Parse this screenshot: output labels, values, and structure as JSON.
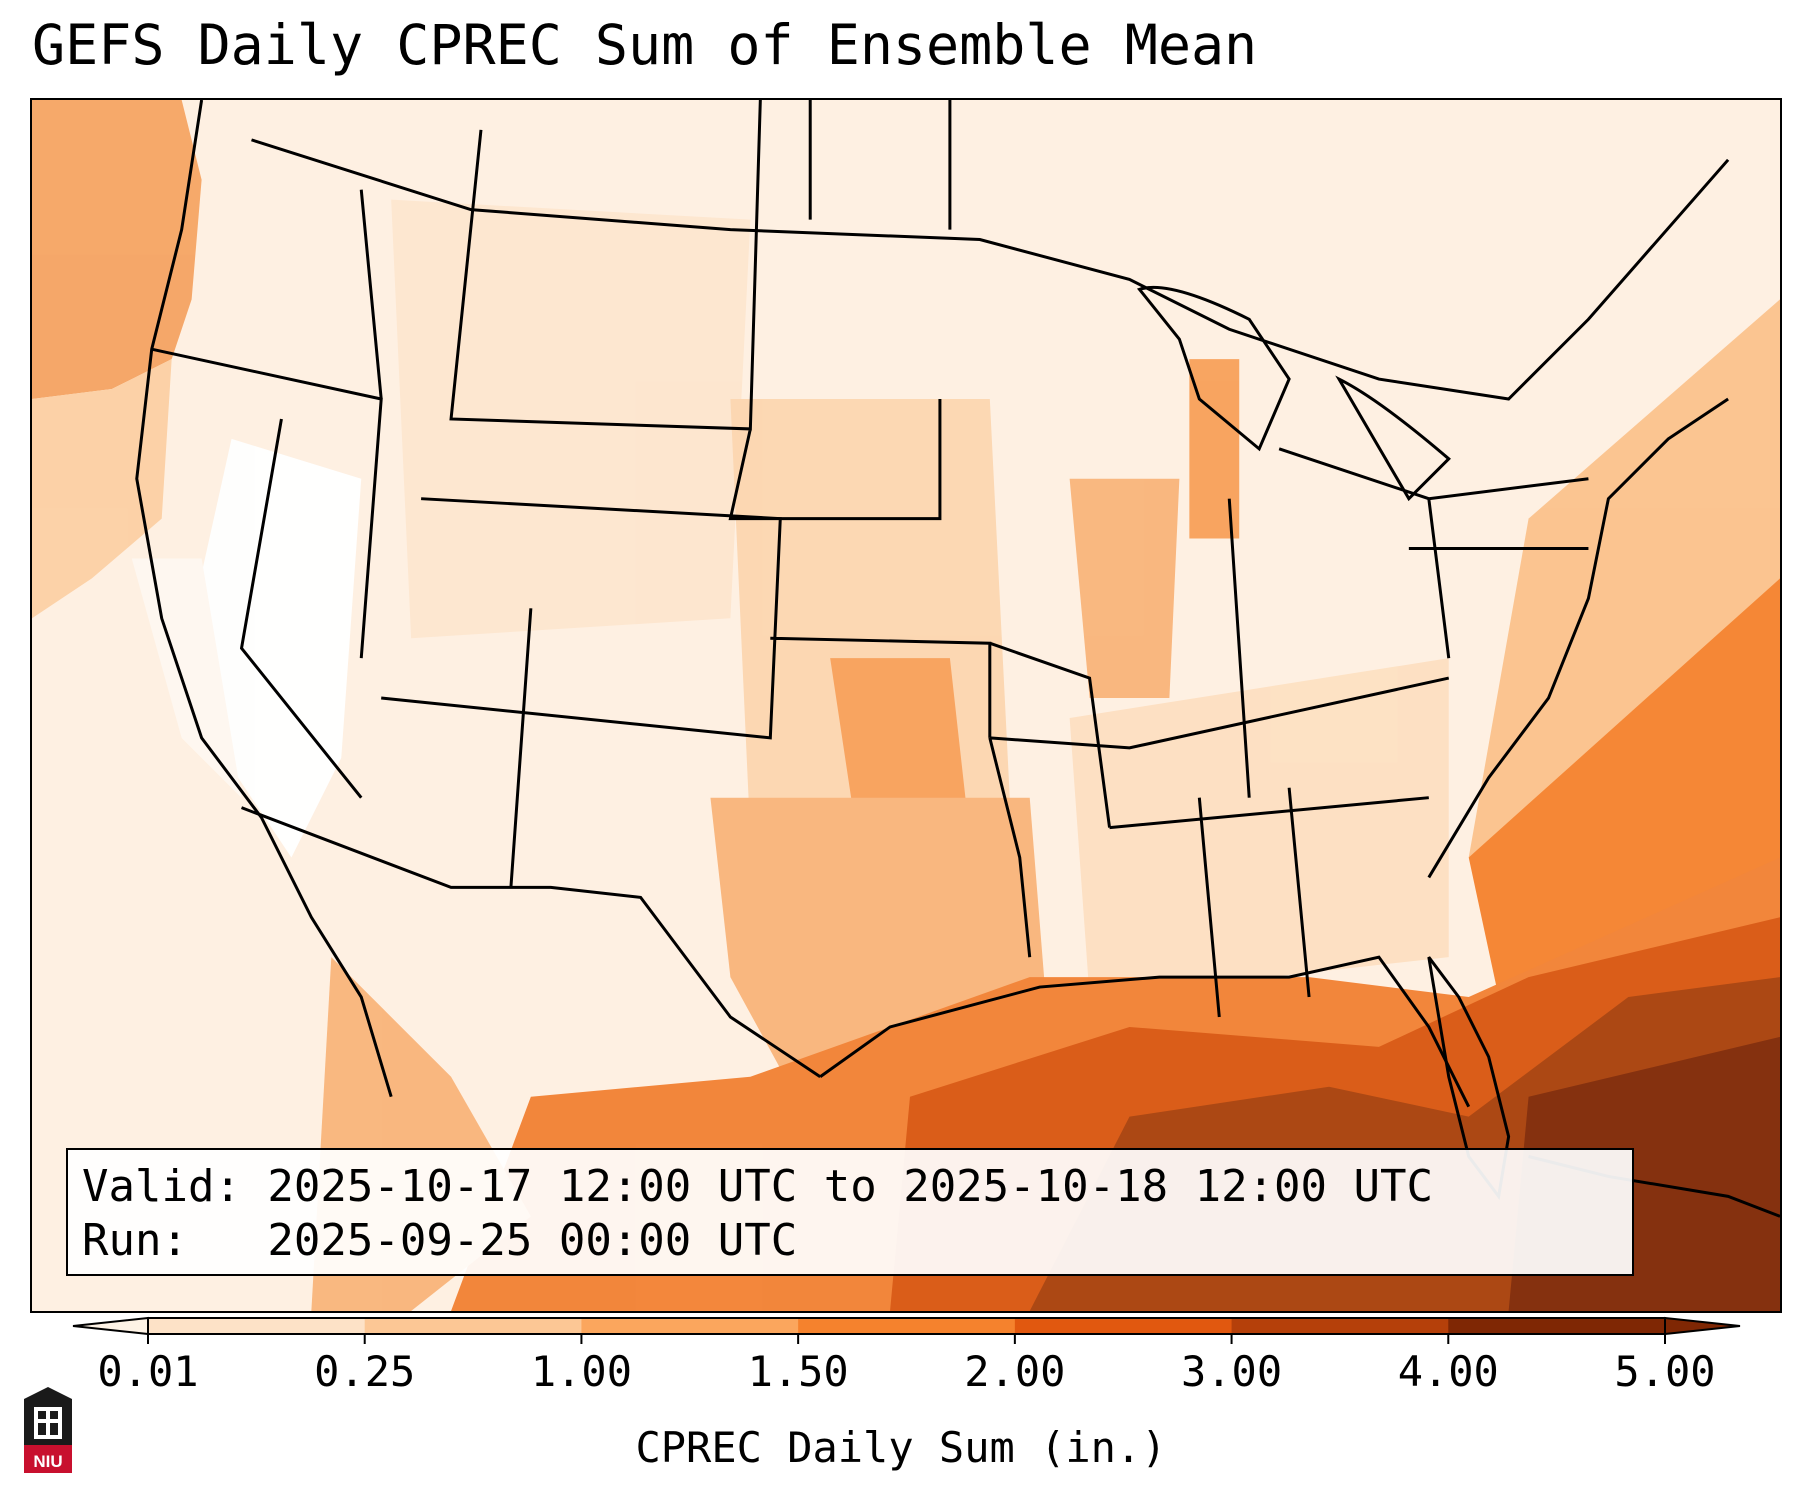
{
  "title": "GEFS Daily CPREC Sum of Ensemble Mean",
  "info": {
    "valid_line": "Valid: 2025-10-17 12:00 UTC to 2025-10-18 12:00 UTC",
    "run_line": "Run:   2025-09-25 00:00 UTC"
  },
  "colorbar": {
    "label": "CPREC Daily Sum (in.)",
    "ticks": [
      "0.01",
      "0.25",
      "1.00",
      "1.50",
      "2.00",
      "3.00",
      "4.00",
      "5.00"
    ],
    "colors": [
      "#fef3e6",
      "#fde2c7",
      "#fcc795",
      "#fba65d",
      "#f5822d",
      "#e1580f",
      "#b5400a",
      "#7f2704"
    ]
  },
  "logo": {
    "text": "NIU"
  }
}
